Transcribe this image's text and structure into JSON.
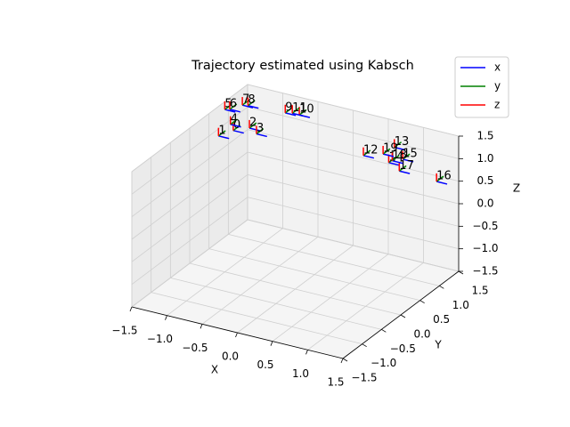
{
  "chart_data": {
    "type": "scatter3d",
    "title": "Trajectory estimated using Kabsch",
    "x_label": "X",
    "y_label": "Y",
    "z_label": "Z",
    "xlim": [
      -1.5,
      1.5
    ],
    "ylim": [
      -1.5,
      1.5
    ],
    "zlim": [
      -1.5,
      1.5
    ],
    "xticks": [
      {
        "value": -1.5,
        "label": "−1.5"
      },
      {
        "value": -1.0,
        "label": "−1.0"
      },
      {
        "value": -0.5,
        "label": "−0.5"
      },
      {
        "value": 0.0,
        "label": "0.0"
      },
      0.5,
      {
        "value": 1.0,
        "label": "1.0"
      },
      1.5
    ],
    "yticks": [
      {
        "value": -1.5,
        "label": "−1.5"
      },
      {
        "value": -1.0,
        "label": "−1.0"
      },
      {
        "value": -0.5,
        "label": "−0.5"
      },
      {
        "value": 0.0,
        "label": "0.0"
      },
      0.5,
      {
        "value": 1.0,
        "label": "1.0"
      },
      1.5
    ],
    "zticks": [
      {
        "value": -1.5,
        "label": "−1.5"
      },
      {
        "value": -1.0,
        "label": "−1.0"
      },
      {
        "value": -0.5,
        "label": "−0.5"
      },
      {
        "value": 0.0,
        "label": "0.0"
      },
      0.5,
      {
        "value": 1.0,
        "label": "1.0"
      },
      1.5
    ],
    "grid": true,
    "series": [
      {
        "name": "x",
        "color": "#0000ff"
      },
      {
        "name": "y",
        "color": "#008000"
      },
      {
        "name": "z",
        "color": "#ff0000"
      }
    ],
    "points": [
      {
        "label": "0",
        "x": -1.32,
        "y": 0.8,
        "z": 1.0
      },
      {
        "label": "1",
        "x": -1.42,
        "y": 0.6,
        "z": 0.97
      },
      {
        "label": "2",
        "x": -1.09,
        "y": 0.8,
        "z": 1.14
      },
      {
        "label": "3",
        "x": -0.99,
        "y": 0.8,
        "z": 1.05
      },
      {
        "label": "4",
        "x": -1.36,
        "y": 0.8,
        "z": 1.12
      },
      {
        "label": "5",
        "x": -1.44,
        "y": 0.8,
        "z": 1.42
      },
      {
        "label": "6",
        "x": -1.37,
        "y": 0.8,
        "z": 1.45
      },
      {
        "label": "7",
        "x": -1.41,
        "y": 1.2,
        "z": 1.27
      },
      {
        "label": "8",
        "x": -1.33,
        "y": 1.2,
        "z": 1.29
      },
      {
        "label": "9",
        "x": -0.91,
        "y": 1.4,
        "z": 1.16
      },
      {
        "label": "10",
        "x": -0.71,
        "y": 1.4,
        "z": 1.19
      },
      {
        "label": "11",
        "x": -0.81,
        "y": 1.4,
        "z": 1.19
      },
      {
        "label": "12",
        "x": 0.42,
        "y": 1.0,
        "z": 0.98
      },
      {
        "label": "13",
        "x": 0.86,
        "y": 1.0,
        "z": 1.33
      },
      {
        "label": "14",
        "x": 0.78,
        "y": 1.0,
        "z": 0.96
      },
      {
        "label": "15",
        "x": 0.98,
        "y": 1.0,
        "z": 1.11
      },
      {
        "label": "16",
        "x": 1.46,
        "y": 1.0,
        "z": 0.8
      },
      {
        "label": "17",
        "x": 0.93,
        "y": 1.0,
        "z": 0.83
      },
      {
        "label": "18",
        "x": 0.83,
        "y": 1.0,
        "z": 1.02
      },
      {
        "label": "19",
        "x": 0.7,
        "y": 1.0,
        "z": 1.12
      }
    ],
    "legend_position": "upper right"
  }
}
